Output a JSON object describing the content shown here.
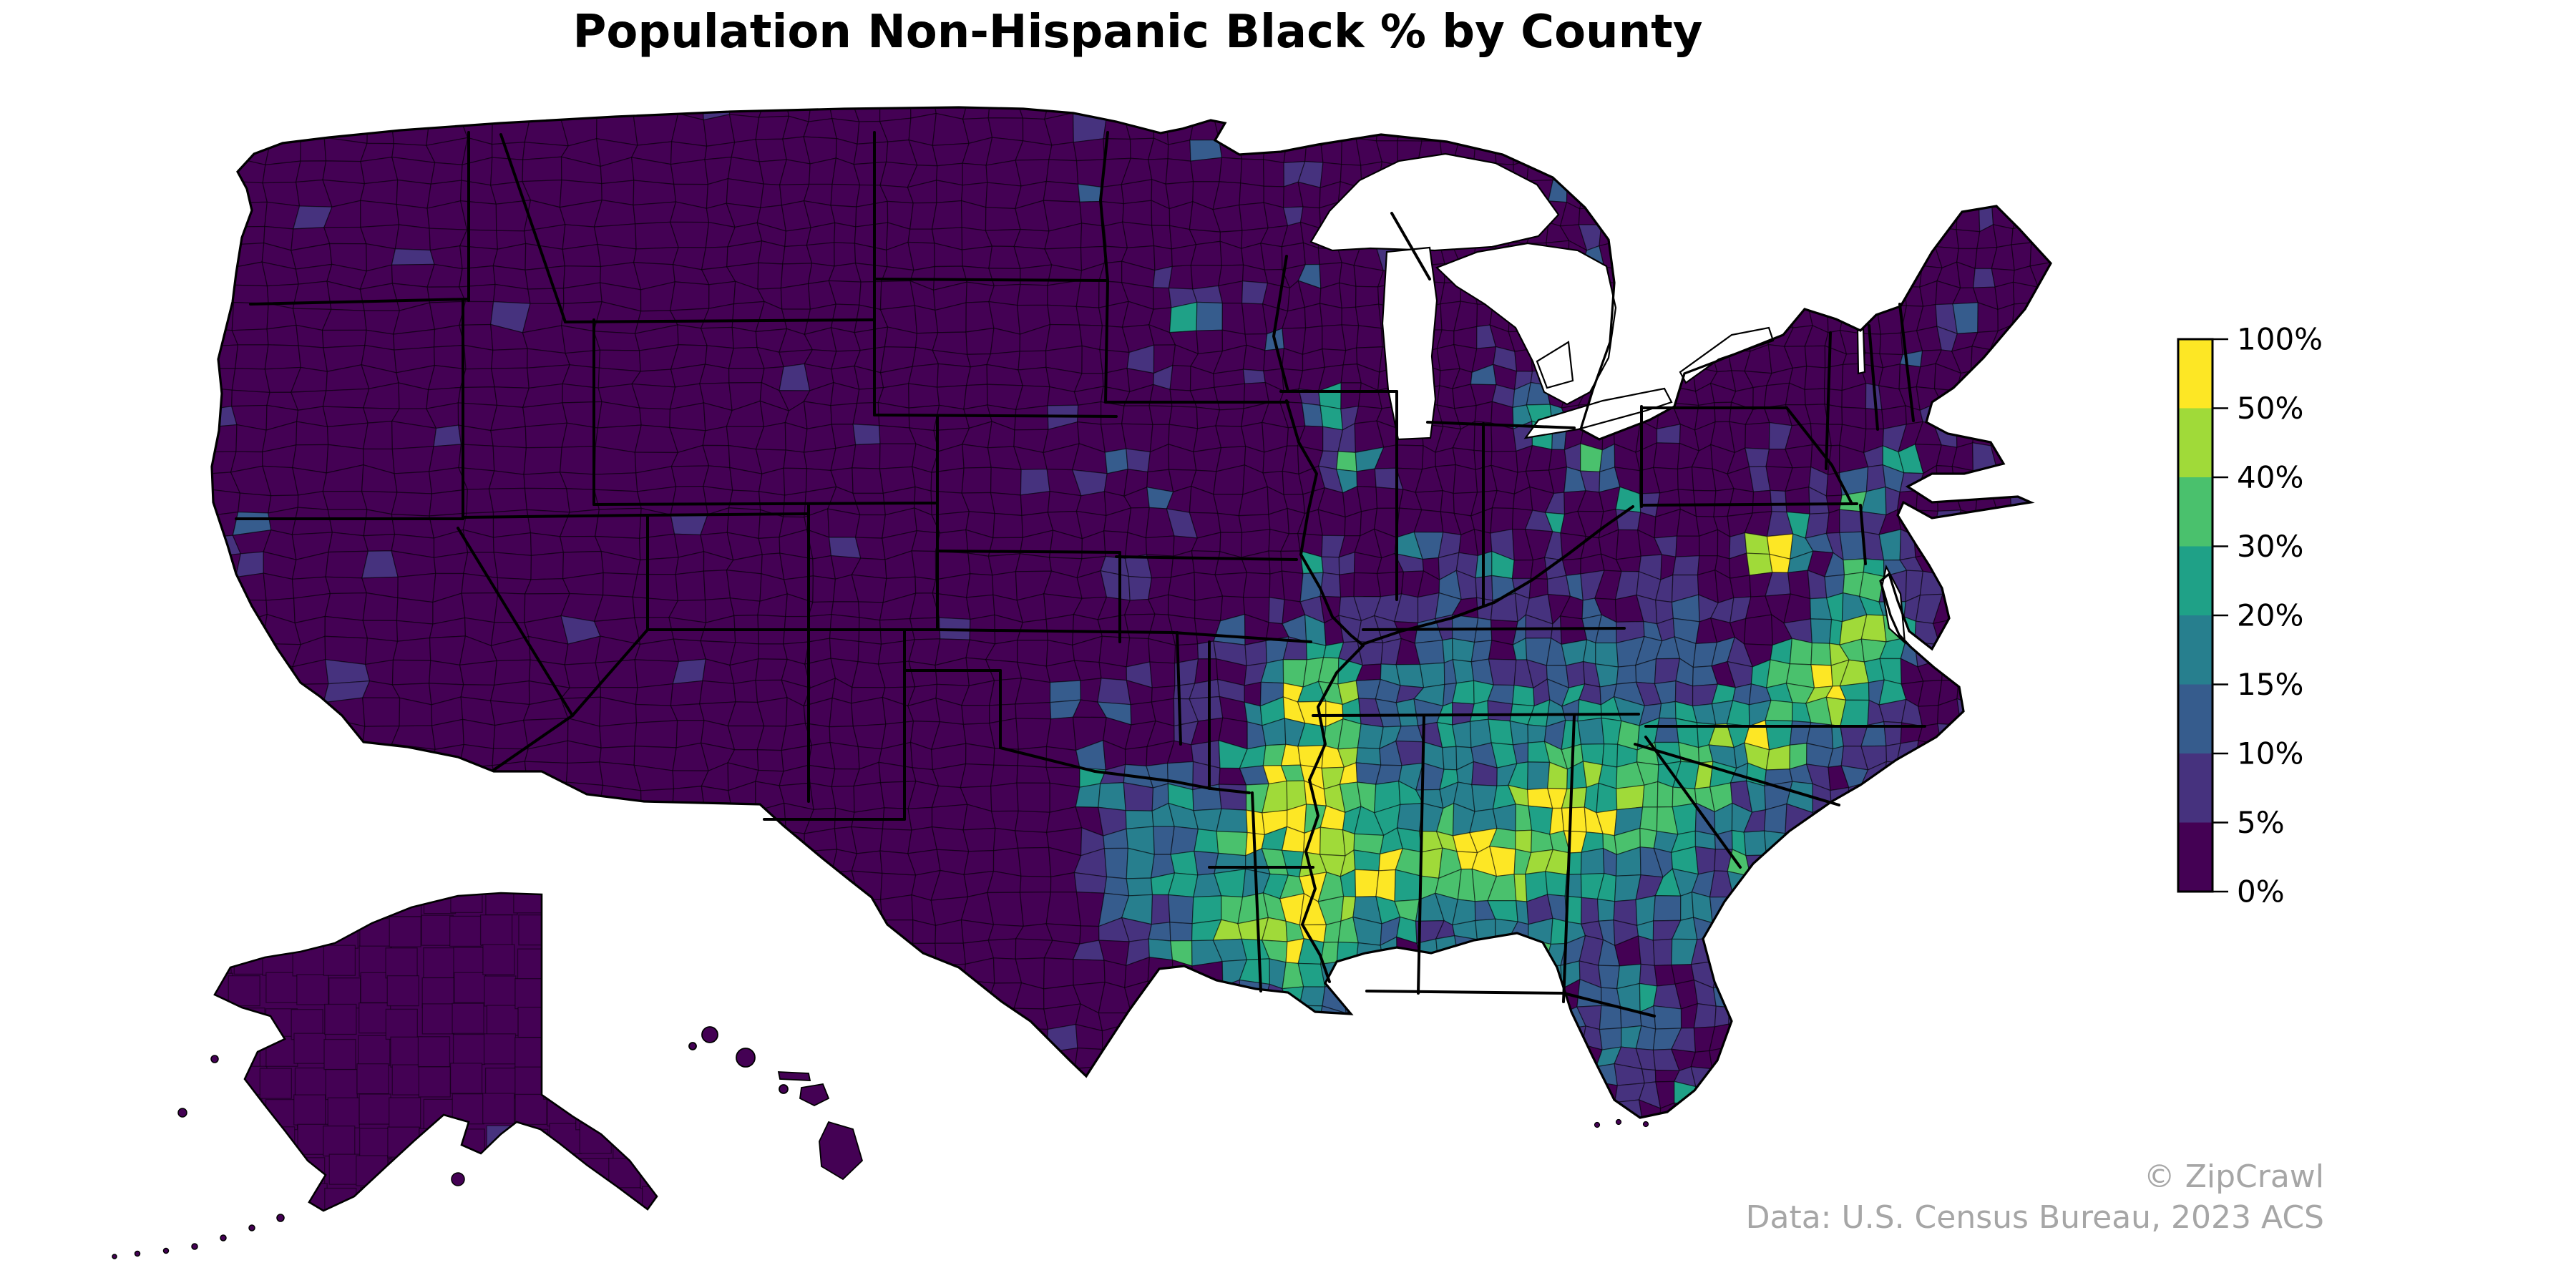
{
  "title": "Population Non-Hispanic Black % by County",
  "attribution": {
    "line1": "© ZipCrawl",
    "line2": "Data: U.S. Census Bureau, 2023 ACS"
  },
  "legend": {
    "tick_labels": [
      "100%",
      "50%",
      "40%",
      "30%",
      "20%",
      "15%",
      "10%",
      "5%",
      "0%"
    ],
    "bins": [
      {
        "range": "0-5%",
        "color": "#440154"
      },
      {
        "range": "5-10%",
        "color": "#46327e"
      },
      {
        "range": "10-15%",
        "color": "#365c8d"
      },
      {
        "range": "15-20%",
        "color": "#277f8e"
      },
      {
        "range": "20-30%",
        "color": "#1fa187"
      },
      {
        "range": "30-40%",
        "color": "#4ac16d"
      },
      {
        "range": "40-50%",
        "color": "#a0da39"
      },
      {
        "range": "50-100%",
        "color": "#fde725"
      }
    ]
  },
  "map": {
    "background": "#ffffff",
    "water_color": "#ffffff",
    "no_data_color": "#440154",
    "county_border_color": "#000000",
    "state_border_color": "#000000"
  },
  "chart_data": {
    "type": "choropleth-map",
    "geography": "United States counties (Albers projection, Alaska & Hawaii insets)",
    "metric": "Non-Hispanic Black population share (%)",
    "classification_breaks_pct": [
      0,
      5,
      10,
      15,
      20,
      30,
      40,
      50,
      100
    ],
    "palette": "viridis, 8 discrete classes",
    "legend_position": "right",
    "high_value_regions": [
      "Mississippi Delta",
      "Alabama Black Belt",
      "Central Georgia",
      "Carolinas coastal plain",
      "Southside/Tidewater Virginia",
      "DC-Maryland suburbs",
      "Memphis area",
      "Northeast Louisiana"
    ],
    "low_value_regions": [
      "Mountain West",
      "Great Plains",
      "Northern New England",
      "Pacific Northwest",
      "Alaska",
      "Hawaii"
    ]
  }
}
